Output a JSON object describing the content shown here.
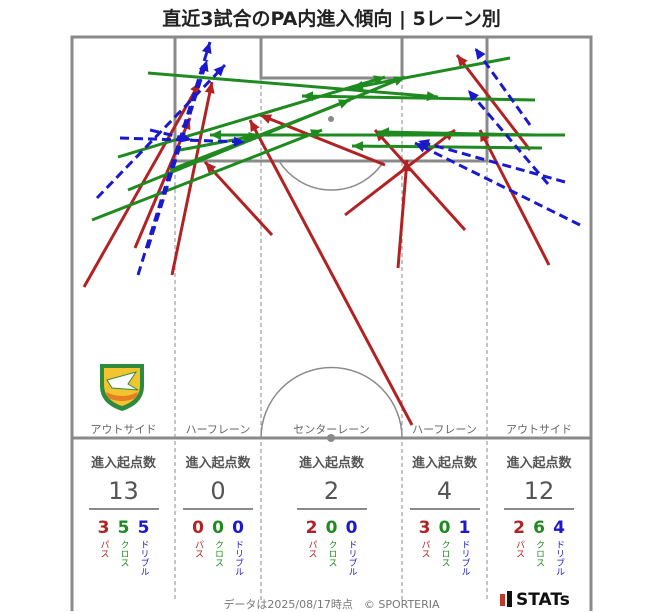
{
  "title": "直近3試合のPA内進入傾向 | 5レーン別",
  "lanes": [
    {
      "label": "アウトサイド",
      "heading": "進入起点数",
      "total": "13",
      "pass": "3",
      "cross": "5",
      "dribble": "5"
    },
    {
      "label": "ハーフレーン",
      "heading": "進入起点数",
      "total": "0",
      "pass": "0",
      "cross": "0",
      "dribble": "0"
    },
    {
      "label": "センターレーン",
      "heading": "進入起点数",
      "total": "2",
      "pass": "2",
      "cross": "0",
      "dribble": "0"
    },
    {
      "label": "ハーフレーン",
      "heading": "進入起点数",
      "total": "4",
      "pass": "3",
      "cross": "0",
      "dribble": "1"
    },
    {
      "label": "アウトサイド",
      "heading": "進入起点数",
      "total": "12",
      "pass": "2",
      "cross": "6",
      "dribble": "4"
    }
  ],
  "type_labels": {
    "pass": "パス",
    "cross": "クロス",
    "dribble": "ドリブル"
  },
  "colors": {
    "pass": "#b22222",
    "cross": "#1f8a1f",
    "dribble": "#1a1acc",
    "pitch_line": "#8a8a8a"
  },
  "footer": "データは2025/08/17時点　© SPORTERIA",
  "logo_text": "STATs",
  "crest": "team-crest-icon"
}
